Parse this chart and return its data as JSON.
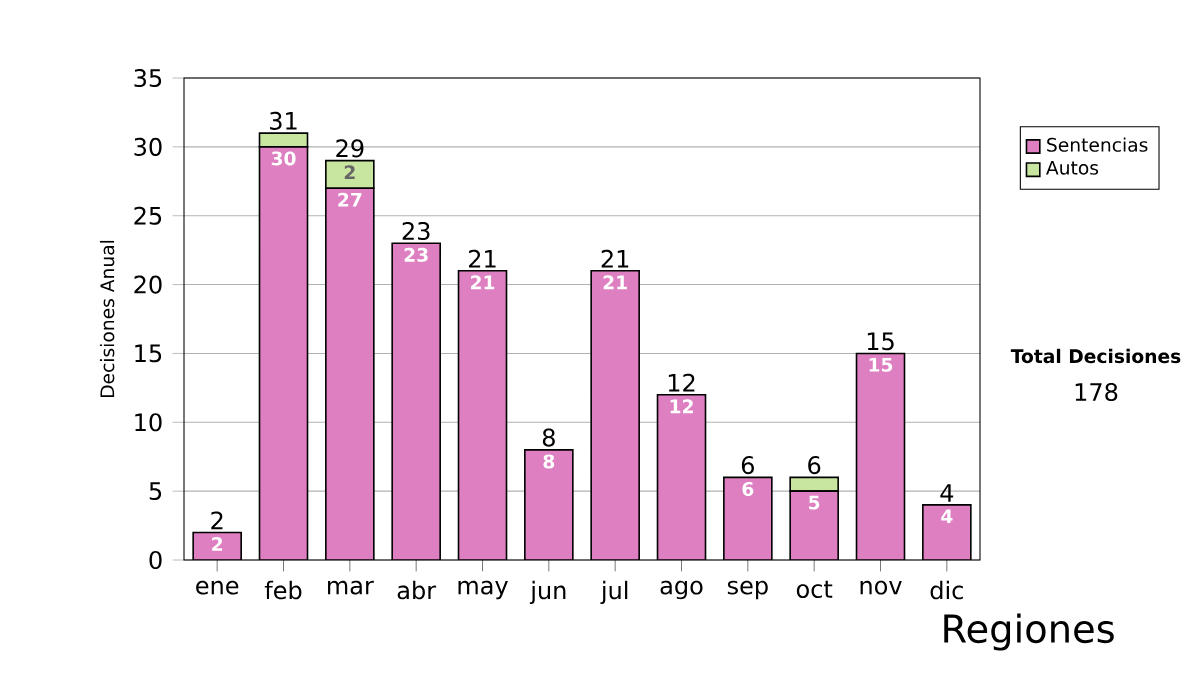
{
  "chart_data": {
    "type": "bar",
    "stacked": true,
    "ylabel": "Decisiones Anual",
    "categories": [
      "ene",
      "feb",
      "mar",
      "abr",
      "may",
      "jun",
      "jul",
      "ago",
      "sep",
      "oct",
      "nov",
      "dic"
    ],
    "series": [
      {
        "name": "Sentencias",
        "color": "#dd7fc0",
        "values": [
          2,
          30,
          27,
          23,
          21,
          8,
          21,
          12,
          6,
          5,
          15,
          4
        ],
        "value_labels": [
          "2",
          "30",
          "27",
          "23",
          "21",
          "8",
          "21",
          "12",
          "6",
          "5",
          "15",
          "4"
        ]
      },
      {
        "name": "Autos",
        "color": "#c8e6a0",
        "values": [
          0,
          1,
          2,
          0,
          0,
          0,
          0,
          0,
          0,
          1,
          0,
          0
        ],
        "value_labels": [
          null,
          null,
          "2",
          null,
          null,
          null,
          null,
          null,
          null,
          null,
          null,
          null
        ]
      }
    ],
    "totals": [
      "2",
      "31",
      "29",
      "23",
      "21",
      "8",
      "21",
      "12",
      "6",
      "6",
      "15",
      "4"
    ],
    "ylim": [
      0,
      35
    ],
    "yticks": [
      0,
      5,
      10,
      15,
      20,
      25,
      30,
      35
    ],
    "grid": "y",
    "legend": "right",
    "annotations": [
      "Total Decisiones",
      "178",
      "Regiones"
    ]
  }
}
